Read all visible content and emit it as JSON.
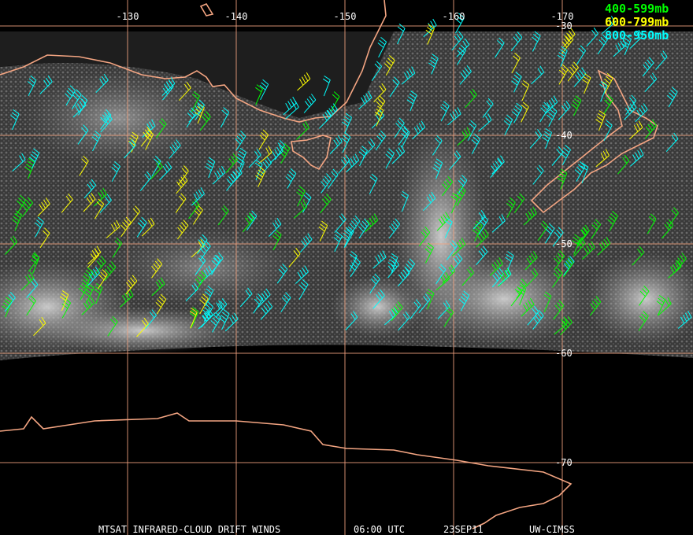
{
  "map": {
    "longitude_labels": [
      "-130",
      "-140",
      "-150",
      "-160",
      "-170"
    ],
    "latitude_labels": [
      "-30",
      "-40",
      "-50",
      "-60",
      "-70"
    ],
    "legend": [
      {
        "label": "400-599mb",
        "color": "#00ff00"
      },
      {
        "label": "600-799mb",
        "color": "#ffff00"
      },
      {
        "label": "800-950mb",
        "color": "#00ffff"
      }
    ],
    "footer": {
      "product": "MTSAT INFRARED-CLOUD DRIFT WINDS",
      "time": "06:00 UTC",
      "date": "23SEP11",
      "source": "UW-CIMSS"
    }
  }
}
